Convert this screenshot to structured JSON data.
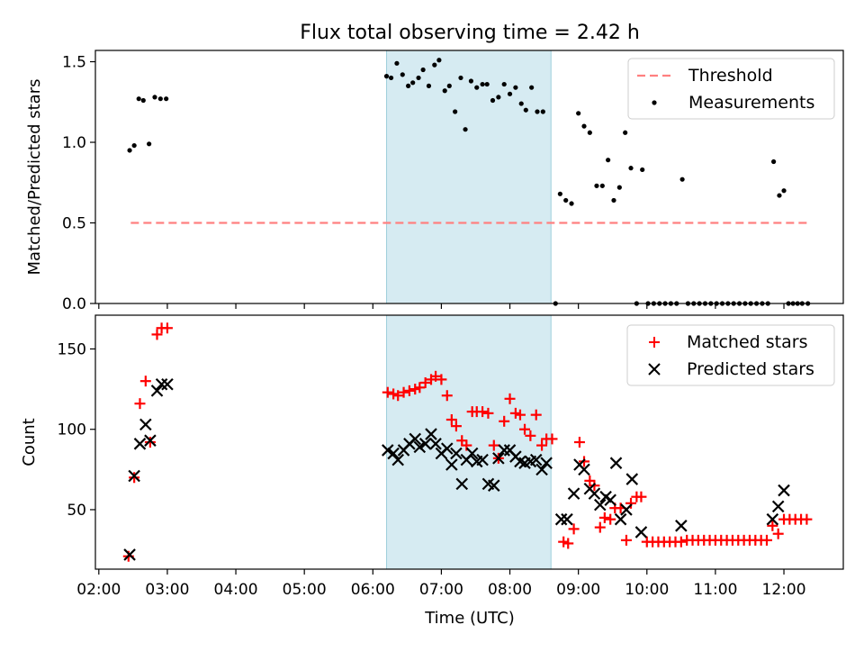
{
  "chart_data": [
    {
      "type": "scatter",
      "title": "Flux total observing time = 2.42 h",
      "xlabel": "",
      "ylabel": "Matched/Predicted stars",
      "xlim": [
        "01:57",
        "12:52"
      ],
      "ylim": [
        0,
        1.57
      ],
      "yticks": [
        0.0,
        0.5,
        1.0,
        1.5
      ],
      "ytick_labels": [
        "0.0",
        "0.5",
        "1.0",
        "1.5"
      ],
      "shaded_span": {
        "start": "06:12",
        "end": "08:36",
        "color": "#add8e6"
      },
      "legend_position": "top-right",
      "threshold": {
        "name": "Threshold",
        "value": 0.5,
        "x_start": "02:28",
        "x_end": "12:22",
        "color": "#ff8080"
      },
      "series": [
        {
          "name": "Measurements",
          "color": "#000000",
          "marker": "dot",
          "points": [
            [
              "02:27",
              0.95
            ],
            [
              "02:31",
              0.98
            ],
            [
              "02:35",
              1.27
            ],
            [
              "02:39",
              1.26
            ],
            [
              "02:44",
              0.99
            ],
            [
              "02:49",
              1.28
            ],
            [
              "02:54",
              1.27
            ],
            [
              "02:59",
              1.27
            ],
            [
              "06:12",
              1.41
            ],
            [
              "06:16",
              1.4
            ],
            [
              "06:21",
              1.49
            ],
            [
              "06:26",
              1.42
            ],
            [
              "06:31",
              1.35
            ],
            [
              "06:35",
              1.37
            ],
            [
              "06:40",
              1.4
            ],
            [
              "06:44",
              1.45
            ],
            [
              "06:49",
              1.35
            ],
            [
              "06:54",
              1.48
            ],
            [
              "06:58",
              1.51
            ],
            [
              "07:03",
              1.32
            ],
            [
              "07:07",
              1.35
            ],
            [
              "07:12",
              1.19
            ],
            [
              "07:17",
              1.4
            ],
            [
              "07:21",
              1.08
            ],
            [
              "07:26",
              1.38
            ],
            [
              "07:31",
              1.34
            ],
            [
              "07:36",
              1.36
            ],
            [
              "07:40",
              1.36
            ],
            [
              "07:45",
              1.26
            ],
            [
              "07:50",
              1.28
            ],
            [
              "07:55",
              1.36
            ],
            [
              "08:00",
              1.3
            ],
            [
              "08:05",
              1.34
            ],
            [
              "08:10",
              1.24
            ],
            [
              "08:14",
              1.2
            ],
            [
              "08:19",
              1.34
            ],
            [
              "08:24",
              1.19
            ],
            [
              "08:29",
              1.19
            ],
            [
              "08:40",
              0.0
            ],
            [
              "08:44",
              0.68
            ],
            [
              "08:49",
              0.64
            ],
            [
              "08:54",
              0.62
            ],
            [
              "09:00",
              1.18
            ],
            [
              "09:05",
              1.1
            ],
            [
              "09:10",
              1.06
            ],
            [
              "09:16",
              0.73
            ],
            [
              "09:21",
              0.73
            ],
            [
              "09:26",
              0.89
            ],
            [
              "09:31",
              0.64
            ],
            [
              "09:36",
              0.72
            ],
            [
              "09:41",
              1.06
            ],
            [
              "09:46",
              0.84
            ],
            [
              "09:51",
              0.0
            ],
            [
              "09:56",
              0.83
            ],
            [
              "10:01",
              0.0
            ],
            [
              "10:06",
              0.0
            ],
            [
              "10:11",
              0.0
            ],
            [
              "10:16",
              0.0
            ],
            [
              "10:21",
              0.0
            ],
            [
              "10:26",
              0.0
            ],
            [
              "10:31",
              0.77
            ],
            [
              "10:36",
              0.0
            ],
            [
              "10:41",
              0.0
            ],
            [
              "10:46",
              0.0
            ],
            [
              "10:51",
              0.0
            ],
            [
              "10:56",
              0.0
            ],
            [
              "11:01",
              0.0
            ],
            [
              "11:06",
              0.0
            ],
            [
              "11:11",
              0.0
            ],
            [
              "11:16",
              0.0
            ],
            [
              "11:21",
              0.0
            ],
            [
              "11:26",
              0.0
            ],
            [
              "11:31",
              0.0
            ],
            [
              "11:36",
              0.0
            ],
            [
              "11:41",
              0.0
            ],
            [
              "11:46",
              0.0
            ],
            [
              "11:51",
              0.88
            ],
            [
              "11:56",
              0.67
            ],
            [
              "12:00",
              0.7
            ],
            [
              "12:04",
              0.0
            ],
            [
              "12:08",
              0.0
            ],
            [
              "12:12",
              0.0
            ],
            [
              "12:16",
              0.0
            ],
            [
              "12:21",
              0.0
            ]
          ]
        }
      ]
    },
    {
      "type": "scatter",
      "title": "",
      "xlabel": "Time (UTC)",
      "ylabel": "Count",
      "xlim": [
        "01:57",
        "12:52"
      ],
      "ylim": [
        13,
        171
      ],
      "yticks": [
        50,
        100,
        150
      ],
      "ytick_labels": [
        "50",
        "100",
        "150"
      ],
      "xticks": [
        "02:00",
        "03:00",
        "04:00",
        "05:00",
        "06:00",
        "07:00",
        "08:00",
        "09:00",
        "10:00",
        "11:00",
        "12:00"
      ],
      "shaded_span": {
        "start": "06:12",
        "end": "08:36",
        "color": "#add8e6"
      },
      "legend_position": "top-right",
      "series": [
        {
          "name": "Matched stars",
          "color": "#ff0000",
          "marker": "plus",
          "points": [
            [
              "02:26",
              21
            ],
            [
              "02:31",
              70
            ],
            [
              "02:36",
              116
            ],
            [
              "02:41",
              130
            ],
            [
              "02:45",
              92
            ],
            [
              "02:51",
              159
            ],
            [
              "02:55",
              163
            ],
            [
              "03:00",
              163
            ],
            [
              "06:13",
              123
            ],
            [
              "06:18",
              122
            ],
            [
              "06:22",
              121
            ],
            [
              "06:27",
              123
            ],
            [
              "06:32",
              124
            ],
            [
              "06:37",
              125
            ],
            [
              "06:41",
              126
            ],
            [
              "06:46",
              129
            ],
            [
              "06:51",
              131
            ],
            [
              "06:55",
              133
            ],
            [
              "07:00",
              131
            ],
            [
              "07:05",
              121
            ],
            [
              "07:09",
              106
            ],
            [
              "07:13",
              102
            ],
            [
              "07:18",
              93
            ],
            [
              "07:22",
              90
            ],
            [
              "07:27",
              111
            ],
            [
              "07:31",
              111
            ],
            [
              "07:36",
              111
            ],
            [
              "07:41",
              110
            ],
            [
              "07:46",
              90
            ],
            [
              "07:50",
              82
            ],
            [
              "07:55",
              105
            ],
            [
              "08:00",
              119
            ],
            [
              "08:05",
              110
            ],
            [
              "08:09",
              109
            ],
            [
              "08:13",
              100
            ],
            [
              "08:18",
              96
            ],
            [
              "08:23",
              109
            ],
            [
              "08:28",
              90
            ],
            [
              "08:32",
              94
            ],
            [
              "08:37",
              94
            ],
            [
              "08:47",
              30
            ],
            [
              "08:51",
              29
            ],
            [
              "08:56",
              38
            ],
            [
              "09:01",
              92
            ],
            [
              "09:05",
              80
            ],
            [
              "09:10",
              68
            ],
            [
              "09:14",
              65
            ],
            [
              "09:19",
              39
            ],
            [
              "09:23",
              45
            ],
            [
              "09:28",
              44
            ],
            [
              "09:32",
              51
            ],
            [
              "09:37",
              51
            ],
            [
              "09:42",
              31
            ],
            [
              "09:46",
              54
            ],
            [
              "09:51",
              58
            ],
            [
              "09:55",
              58
            ],
            [
              "10:00",
              30
            ],
            [
              "10:05",
              30
            ],
            [
              "10:10",
              30
            ],
            [
              "10:15",
              30
            ],
            [
              "10:20",
              30
            ],
            [
              "10:25",
              30
            ],
            [
              "10:30",
              30
            ],
            [
              "10:35",
              31
            ],
            [
              "10:40",
              31
            ],
            [
              "10:45",
              31
            ],
            [
              "10:50",
              31
            ],
            [
              "10:55",
              31
            ],
            [
              "11:00",
              31
            ],
            [
              "11:05",
              31
            ],
            [
              "11:10",
              31
            ],
            [
              "11:15",
              31
            ],
            [
              "11:20",
              31
            ],
            [
              "11:25",
              31
            ],
            [
              "11:30",
              31
            ],
            [
              "11:35",
              31
            ],
            [
              "11:40",
              31
            ],
            [
              "11:45",
              31
            ],
            [
              "11:50",
              40
            ],
            [
              "11:55",
              35
            ],
            [
              "12:00",
              44
            ],
            [
              "12:05",
              44
            ],
            [
              "12:10",
              44
            ],
            [
              "12:15",
              44
            ],
            [
              "12:20",
              44
            ]
          ]
        },
        {
          "name": "Predicted stars",
          "color": "#000000",
          "marker": "x",
          "points": [
            [
              "02:27",
              22
            ],
            [
              "02:31",
              71
            ],
            [
              "02:36",
              91
            ],
            [
              "02:41",
              103
            ],
            [
              "02:45",
              93
            ],
            [
              "02:51",
              124
            ],
            [
              "02:55",
              128
            ],
            [
              "03:00",
              128
            ],
            [
              "06:13",
              87
            ],
            [
              "06:18",
              85
            ],
            [
              "06:22",
              81
            ],
            [
              "06:27",
              87
            ],
            [
              "06:32",
              91
            ],
            [
              "06:37",
              94
            ],
            [
              "06:41",
              89
            ],
            [
              "06:46",
              91
            ],
            [
              "06:51",
              97
            ],
            [
              "06:55",
              91
            ],
            [
              "07:00",
              85
            ],
            [
              "07:05",
              88
            ],
            [
              "07:09",
              78
            ],
            [
              "07:13",
              85
            ],
            [
              "07:18",
              66
            ],
            [
              "07:22",
              81
            ],
            [
              "07:27",
              85
            ],
            [
              "07:31",
              80
            ],
            [
              "07:36",
              81
            ],
            [
              "07:41",
              66
            ],
            [
              "07:46",
              65
            ],
            [
              "07:50",
              82
            ],
            [
              "07:55",
              87
            ],
            [
              "08:00",
              87
            ],
            [
              "08:05",
              83
            ],
            [
              "08:09",
              80
            ],
            [
              "08:13",
              79
            ],
            [
              "08:18",
              80
            ],
            [
              "08:23",
              81
            ],
            [
              "08:28",
              75
            ],
            [
              "08:32",
              79
            ],
            [
              "08:45",
              44
            ],
            [
              "08:50",
              44
            ],
            [
              "08:56",
              60
            ],
            [
              "09:01",
              78
            ],
            [
              "09:05",
              75
            ],
            [
              "09:10",
              63
            ],
            [
              "09:14",
              60
            ],
            [
              "09:19",
              53
            ],
            [
              "09:24",
              58
            ],
            [
              "09:28",
              56
            ],
            [
              "09:33",
              79
            ],
            [
              "09:37",
              44
            ],
            [
              "09:42",
              50
            ],
            [
              "09:47",
              69
            ],
            [
              "09:55",
              36
            ],
            [
              "10:30",
              40
            ],
            [
              "11:50",
              44
            ],
            [
              "11:55",
              52
            ],
            [
              "12:00",
              62
            ]
          ]
        }
      ]
    }
  ]
}
